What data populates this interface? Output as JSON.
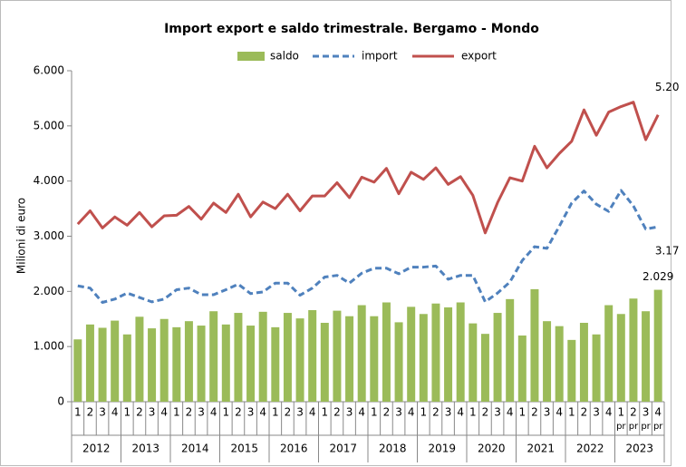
{
  "chart_data": {
    "type": "bar-line",
    "title": "Import export e saldo trimestrale. Bergamo - Mondo",
    "ylabel": "Milioni di euro",
    "categories": [
      "1",
      "2",
      "3",
      "4",
      "1",
      "2",
      "3",
      "4",
      "1",
      "2",
      "3",
      "4",
      "1",
      "2",
      "3",
      "4",
      "1",
      "2",
      "3",
      "4",
      "1",
      "2",
      "3",
      "4",
      "1",
      "2",
      "3",
      "4",
      "1",
      "2",
      "3",
      "4",
      "1",
      "2",
      "3",
      "4",
      "1",
      "2",
      "3",
      "4",
      "1",
      "2",
      "3",
      "4",
      "1",
      "2",
      "3",
      "4"
    ],
    "sublabels": [
      null,
      null,
      null,
      null,
      null,
      null,
      null,
      null,
      null,
      null,
      null,
      null,
      null,
      null,
      null,
      null,
      null,
      null,
      null,
      null,
      null,
      null,
      null,
      null,
      null,
      null,
      null,
      null,
      null,
      null,
      null,
      null,
      null,
      null,
      null,
      null,
      null,
      null,
      null,
      null,
      null,
      null,
      null,
      null,
      "pr",
      "pr",
      "pr",
      "pr"
    ],
    "years": [
      "2012",
      "2013",
      "2014",
      "2015",
      "2016",
      "2017",
      "2018",
      "2019",
      "2020",
      "2021",
      "2022",
      "2023"
    ],
    "ylim": [
      0,
      6000
    ],
    "yticks": [
      0,
      {
        "value": 1000,
        "label": "1.000"
      },
      {
        "value": 2000,
        "label": "2.000"
      },
      {
        "value": 3000,
        "label": "3.000"
      },
      {
        "value": 4000,
        "label": "4.000"
      },
      {
        "value": 5000,
        "label": "5.000"
      },
      {
        "value": 6000,
        "label": "6.000"
      }
    ],
    "series": [
      {
        "name": "saldo",
        "type": "bar",
        "color": "#9bbb59",
        "values": [
          1130,
          1400,
          1340,
          1470,
          1220,
          1540,
          1330,
          1500,
          1350,
          1460,
          1380,
          1640,
          1400,
          1610,
          1380,
          1630,
          1350,
          1610,
          1510,
          1660,
          1430,
          1650,
          1550,
          1750,
          1550,
          1800,
          1440,
          1720,
          1590,
          1780,
          1710,
          1800,
          1420,
          1230,
          1610,
          1860,
          1200,
          2040,
          1460,
          1370,
          1120,
          1430,
          1220,
          1750,
          1590,
          1870,
          1640,
          2029
        ],
        "value_labels": [
          null,
          null,
          null,
          null,
          null,
          null,
          null,
          null,
          null,
          null,
          null,
          null,
          null,
          null,
          null,
          null,
          null,
          null,
          null,
          null,
          null,
          null,
          null,
          null,
          null,
          null,
          null,
          null,
          null,
          null,
          null,
          null,
          null,
          null,
          null,
          null,
          null,
          null,
          null,
          null,
          null,
          null,
          null,
          null,
          null,
          null,
          null,
          "2.029"
        ]
      },
      {
        "name": "import",
        "type": "line",
        "dashed": true,
        "color": "#4f81bd",
        "values": [
          2100,
          2060,
          1800,
          1860,
          1970,
          1890,
          1810,
          1860,
          2030,
          2060,
          1940,
          1940,
          2030,
          2130,
          1960,
          1990,
          2150,
          2150,
          1930,
          2060,
          2260,
          2290,
          2150,
          2330,
          2420,
          2420,
          2320,
          2440,
          2440,
          2460,
          2220,
          2290,
          2290,
          1810,
          1970,
          2170,
          2560,
          2810,
          2780,
          3180,
          3600,
          3820,
          3580,
          3450,
          3830,
          3550,
          3130,
          3170
        ],
        "value_labels": [
          null,
          null,
          null,
          null,
          null,
          null,
          null,
          null,
          null,
          null,
          null,
          null,
          null,
          null,
          null,
          null,
          null,
          null,
          null,
          null,
          null,
          null,
          null,
          null,
          null,
          null,
          null,
          null,
          null,
          null,
          null,
          null,
          null,
          null,
          null,
          null,
          null,
          null,
          null,
          null,
          null,
          null,
          null,
          null,
          null,
          null,
          null,
          "3.17"
        ]
      },
      {
        "name": "export",
        "type": "line",
        "dashed": false,
        "color": "#c0504d",
        "values": [
          3220,
          3460,
          3150,
          3350,
          3200,
          3430,
          3170,
          3370,
          3380,
          3540,
          3310,
          3600,
          3430,
          3760,
          3350,
          3620,
          3500,
          3760,
          3460,
          3730,
          3730,
          3970,
          3700,
          4070,
          3980,
          4230,
          3770,
          4160,
          4030,
          4240,
          3940,
          4080,
          3740,
          3060,
          3610,
          4060,
          4000,
          4630,
          4240,
          4500,
          4720,
          5290,
          4830,
          5250,
          5350,
          5430,
          4750,
          5200
        ],
        "value_labels": [
          null,
          null,
          null,
          null,
          null,
          null,
          null,
          null,
          null,
          null,
          null,
          null,
          null,
          null,
          null,
          null,
          null,
          null,
          null,
          null,
          null,
          null,
          null,
          null,
          null,
          null,
          null,
          null,
          null,
          null,
          null,
          null,
          null,
          null,
          null,
          null,
          null,
          null,
          null,
          null,
          null,
          null,
          null,
          null,
          null,
          null,
          null,
          "5.20"
        ]
      }
    ]
  }
}
